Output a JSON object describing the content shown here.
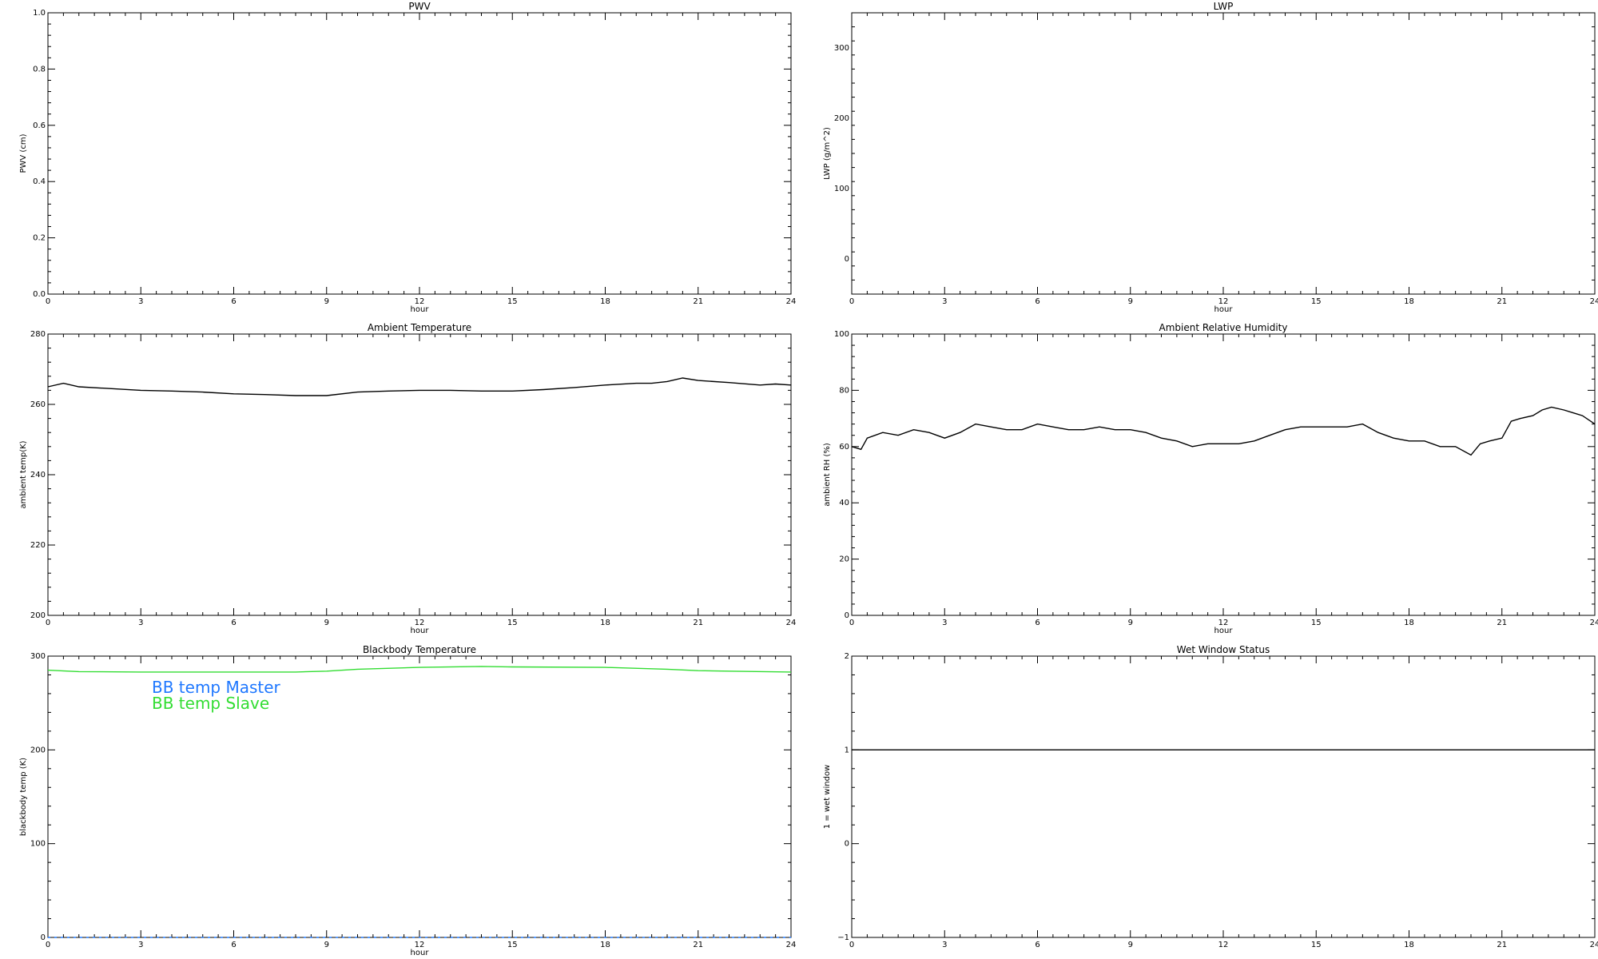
{
  "chart_data": [
    {
      "type": "line",
      "title": "PWV",
      "xlabel": "hour",
      "ylabel": "PWV (cm)",
      "xlim": [
        0,
        24
      ],
      "ylim": [
        0.0,
        1.0
      ],
      "xticks": [
        "0",
        "3",
        "6",
        "9",
        "12",
        "15",
        "18",
        "21",
        "24"
      ],
      "yticks": [
        {
          "v": 0.0,
          "t": "0.0"
        },
        {
          "v": 0.2,
          "t": "0.2"
        },
        {
          "v": 0.4,
          "t": "0.4"
        },
        {
          "v": 0.6,
          "t": "0.6"
        },
        {
          "v": 0.8,
          "t": "0.8"
        },
        {
          "v": 1.0,
          "t": "1.0"
        }
      ],
      "series": []
    },
    {
      "type": "line",
      "title": "LWP",
      "xlabel": "hour",
      "ylabel": "LWP (g/m^2)",
      "xlim": [
        0,
        24
      ],
      "ylim": [
        -50,
        350
      ],
      "xticks": [
        "0",
        "3",
        "6",
        "9",
        "12",
        "15",
        "18",
        "21",
        "24"
      ],
      "yticks": [
        {
          "v": 0,
          "t": "0"
        },
        {
          "v": 100,
          "t": "100"
        },
        {
          "v": 200,
          "t": "200"
        },
        {
          "v": 300,
          "t": "300"
        }
      ],
      "series": []
    },
    {
      "type": "line",
      "title": "Ambient Temperature",
      "xlabel": "hour",
      "ylabel": "ambient temp(K)",
      "xlim": [
        0,
        24
      ],
      "ylim": [
        200,
        280
      ],
      "xticks": [
        "0",
        "3",
        "6",
        "9",
        "12",
        "15",
        "18",
        "21",
        "24"
      ],
      "yticks": [
        {
          "v": 200,
          "t": "200"
        },
        {
          "v": 220,
          "t": "220"
        },
        {
          "v": 240,
          "t": "240"
        },
        {
          "v": 260,
          "t": "260"
        },
        {
          "v": 280,
          "t": "280"
        }
      ],
      "series": [
        {
          "color": "#000000",
          "x": [
            0,
            0.5,
            1,
            2,
            3,
            4,
            5,
            6,
            7,
            8,
            9,
            10,
            11,
            12,
            13,
            14,
            15,
            16,
            17,
            18,
            19,
            19.5,
            20,
            20.5,
            21,
            22,
            23,
            23.5,
            24
          ],
          "y": [
            265,
            266,
            265,
            264.5,
            264,
            263.8,
            263.5,
            263,
            262.8,
            262.5,
            262.5,
            263.5,
            263.8,
            264,
            264,
            263.8,
            263.8,
            264.2,
            264.8,
            265.5,
            266,
            266,
            266.5,
            267.5,
            266.8,
            266.2,
            265.5,
            265.8,
            265.5
          ]
        }
      ]
    },
    {
      "type": "line",
      "title": "Ambient Relative Humidity",
      "xlabel": "hour",
      "ylabel": "ambient RH (%)",
      "xlim": [
        0,
        24
      ],
      "ylim": [
        0,
        100
      ],
      "xticks": [
        "0",
        "3",
        "6",
        "9",
        "12",
        "15",
        "18",
        "21",
        "24"
      ],
      "yticks": [
        {
          "v": 0,
          "t": "0"
        },
        {
          "v": 20,
          "t": "20"
        },
        {
          "v": 40,
          "t": "40"
        },
        {
          "v": 60,
          "t": "60"
        },
        {
          "v": 80,
          "t": "80"
        },
        {
          "v": 100,
          "t": "100"
        }
      ],
      "series": [
        {
          "color": "#000000",
          "x": [
            0,
            0.3,
            0.5,
            1,
            1.5,
            2,
            2.5,
            3,
            3.5,
            4,
            4.5,
            5,
            5.5,
            6,
            6.5,
            7,
            7.5,
            8,
            8.5,
            9,
            9.5,
            10,
            10.5,
            11,
            11.5,
            12,
            12.5,
            13,
            13.5,
            14,
            14.5,
            15,
            15.5,
            16,
            16.5,
            17,
            17.5,
            18,
            18.5,
            19,
            19.5,
            20,
            20.3,
            20.6,
            21,
            21.3,
            21.6,
            22,
            22.3,
            22.6,
            23,
            23.3,
            23.6,
            24
          ],
          "y": [
            60,
            59,
            63,
            65,
            64,
            66,
            65,
            63,
            65,
            68,
            67,
            66,
            66,
            68,
            67,
            66,
            66,
            67,
            66,
            66,
            65,
            63,
            62,
            60,
            61,
            61,
            61,
            62,
            64,
            66,
            67,
            67,
            67,
            67,
            68,
            65,
            63,
            62,
            62,
            60,
            60,
            57,
            61,
            62,
            63,
            69,
            70,
            71,
            73,
            74,
            73,
            72,
            71,
            68
          ]
        }
      ]
    },
    {
      "type": "line",
      "title": "Blackbody Temperature",
      "xlabel": "hour",
      "ylabel": "blackbody temp (K)",
      "xlim": [
        0,
        24
      ],
      "ylim": [
        0,
        300
      ],
      "xticks": [
        "0",
        "3",
        "6",
        "9",
        "12",
        "15",
        "18",
        "21",
        "24"
      ],
      "yticks": [
        {
          "v": 0,
          "t": "0"
        },
        {
          "v": 100,
          "t": "100"
        },
        {
          "v": 200,
          "t": "200"
        },
        {
          "v": 300,
          "t": "300"
        }
      ],
      "legend": [
        {
          "name": "BB temp Master",
          "color": "#1f78ff"
        },
        {
          "name": "BB temp Slave",
          "color": "#33dd33"
        }
      ],
      "series": [
        {
          "name": "BB temp Master",
          "color": "#1f78ff",
          "dashed": true,
          "x": [
            0,
            3,
            6,
            9,
            12,
            15,
            18,
            21,
            24
          ],
          "y": [
            0,
            0,
            0,
            0,
            0,
            0,
            0,
            0,
            0
          ]
        },
        {
          "name": "BB temp Slave",
          "color": "#33dd33",
          "x": [
            0,
            1,
            3,
            6,
            8,
            9,
            10,
            12,
            14,
            15,
            18,
            20,
            21,
            22,
            24
          ],
          "y": [
            285,
            283.5,
            283,
            283,
            283,
            284,
            286,
            288,
            289,
            288.5,
            288,
            286,
            284.5,
            284,
            283
          ]
        }
      ]
    },
    {
      "type": "line",
      "title": "Wet Window Status",
      "xlabel": "",
      "ylabel": "1 = wet window",
      "xlim": [
        0,
        24
      ],
      "ylim": [
        -1,
        2
      ],
      "xticks": [
        "0",
        "3",
        "6",
        "9",
        "12",
        "15",
        "18",
        "21",
        "24"
      ],
      "yticks": [
        {
          "v": -1,
          "t": "−1"
        },
        {
          "v": 0,
          "t": "0"
        },
        {
          "v": 1,
          "t": "1"
        },
        {
          "v": 2,
          "t": "2"
        }
      ],
      "series": [
        {
          "color": "#000000",
          "x": [
            0,
            24
          ],
          "y": [
            1,
            1
          ]
        }
      ]
    }
  ]
}
